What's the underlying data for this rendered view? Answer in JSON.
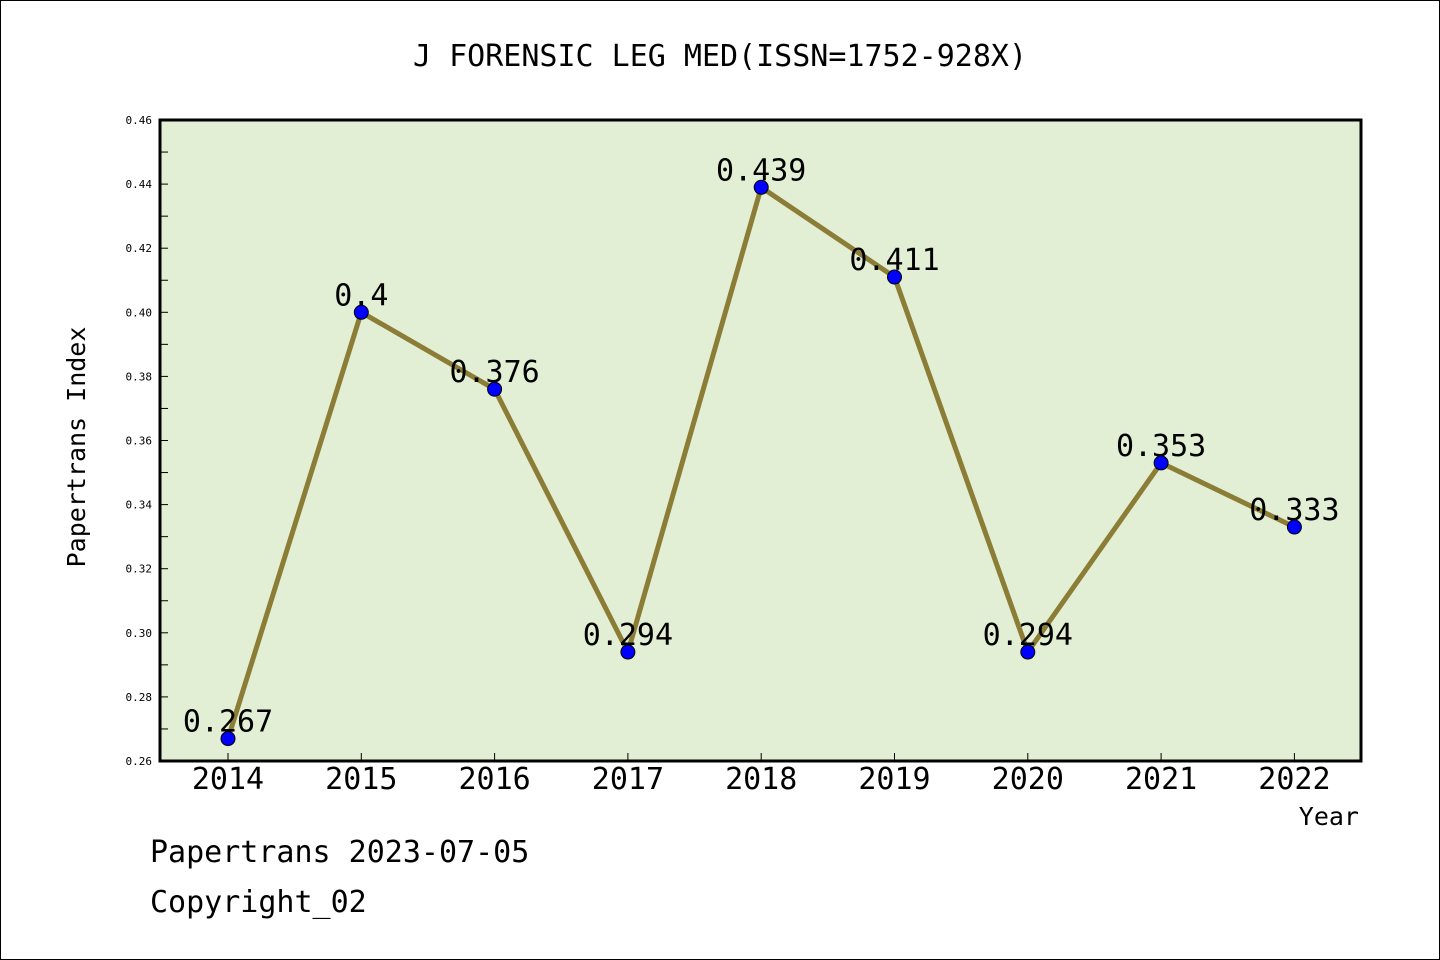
{
  "chart_data": {
    "type": "line",
    "title": "J FORENSIC LEG MED(ISSN=1752-928X)",
    "xlabel": "Year",
    "ylabel": "Papertrans Index",
    "categories": [
      "2014",
      "2015",
      "2016",
      "2017",
      "2018",
      "2019",
      "2020",
      "2021",
      "2022"
    ],
    "values": [
      0.267,
      0.4,
      0.376,
      0.294,
      0.439,
      0.411,
      0.294,
      0.353,
      0.333
    ],
    "data_labels": [
      "0.267",
      "0.4",
      "0.376",
      "0.294",
      "0.439",
      "0.411",
      "0.294",
      "0.353",
      "0.333"
    ],
    "ylim": [
      0.26,
      0.46
    ],
    "yticks": [
      "0.26",
      "0.28",
      "0.30",
      "0.32",
      "0.34",
      "0.36",
      "0.38",
      "0.40",
      "0.42",
      "0.44",
      "0.46"
    ],
    "grid": false,
    "colors": {
      "plot_background": "#e2efd4",
      "line": "#8b7d35",
      "marker": "#0000ff"
    }
  },
  "footer": {
    "date_line": "Papertrans 2023-07-05",
    "copyright": "Copyright_02"
  }
}
